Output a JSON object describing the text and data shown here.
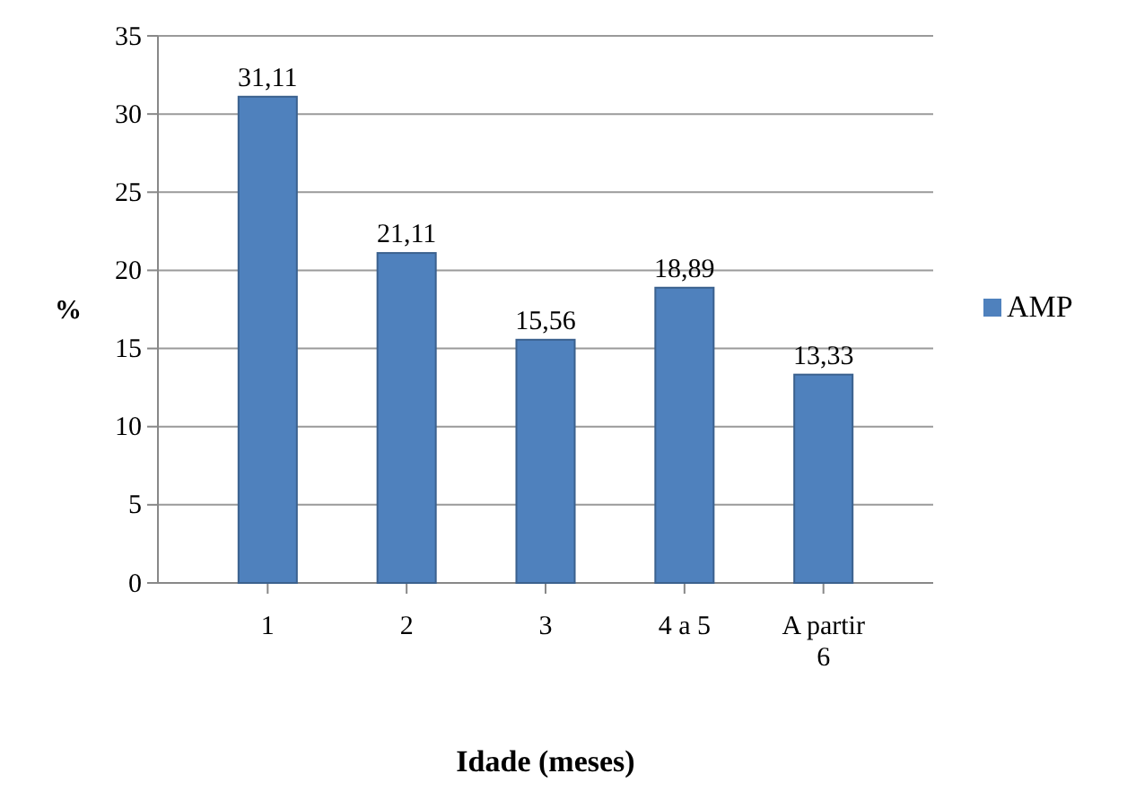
{
  "chart_data": {
    "type": "bar",
    "xlabel": "Idade (meses)",
    "ylabel": "%",
    "categories": [
      "1",
      "2",
      "3",
      "4 a 5",
      "A partir 6"
    ],
    "series": [
      {
        "name": "AMP",
        "color": "#4f81bd",
        "values": [
          31.11,
          21.11,
          15.56,
          18.89,
          13.33
        ],
        "value_labels": [
          "31,11",
          "21,11",
          "15,56",
          "18,89",
          "13,33"
        ]
      }
    ],
    "ylim": [
      0,
      35
    ],
    "yticks": [
      0,
      5,
      10,
      15,
      20,
      25,
      30,
      35
    ],
    "grid": "y",
    "legend": "right"
  }
}
